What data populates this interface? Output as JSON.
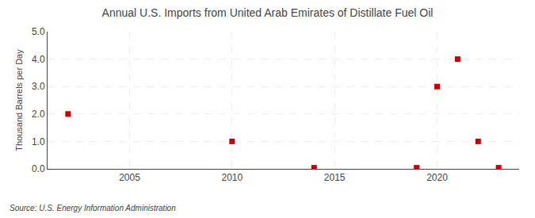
{
  "chart_data": {
    "type": "scatter",
    "title": "Annual U.S. Imports from United Arab Emirates of Distillate Fuel Oil",
    "ylabel": "Thousand Barrels per Day",
    "annotations": [
      "Source: U.S. Energy Information Administration"
    ],
    "x": [
      2002,
      2010,
      2014,
      2019,
      2020,
      2021,
      2022,
      2023
    ],
    "values": [
      2.0,
      1.0,
      0.04,
      0.04,
      3.0,
      4.0,
      1.0,
      0.04
    ],
    "color": "#cc0000",
    "marker": "square",
    "xlim": [
      2001,
      2024
    ],
    "xticks": [
      2005,
      2010,
      2015,
      2020
    ],
    "ylim": [
      0,
      5.0
    ],
    "yticks": [
      {
        "value": 0.0,
        "label": "0.0"
      },
      {
        "value": 1.0,
        "label": "1.0"
      },
      {
        "value": 2.0,
        "label": "2.0"
      },
      {
        "value": 3.0,
        "label": "3.0"
      },
      {
        "value": 4.0,
        "label": "4.0"
      },
      {
        "value": 5.0,
        "label": "5.0"
      }
    ],
    "grid": true
  }
}
